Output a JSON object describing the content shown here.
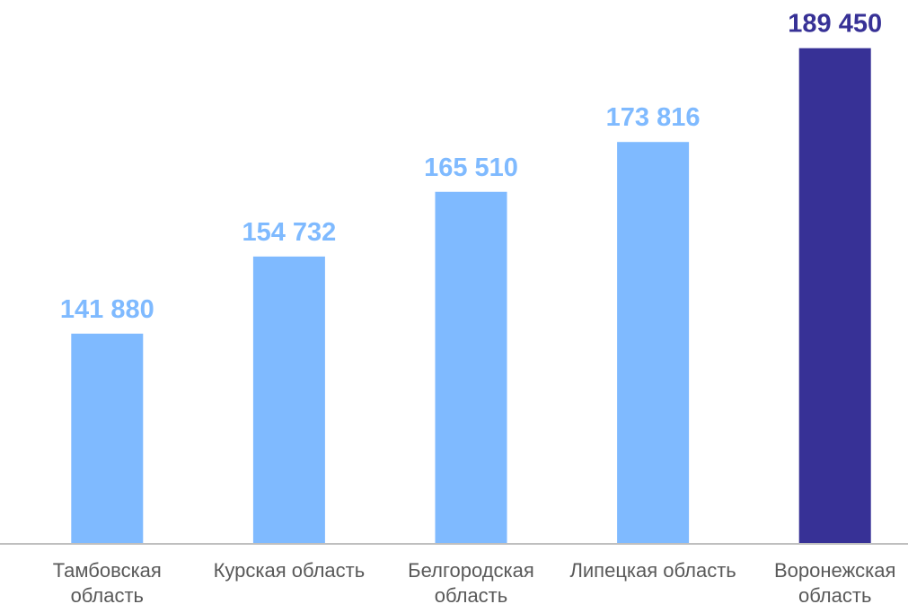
{
  "chart_data": {
    "type": "bar",
    "categories": [
      "Тамбовская область",
      "Курская область",
      "Белгородская область",
      "Липецкая область",
      "Воронежская область"
    ],
    "values": [
      141880,
      154732,
      165510,
      173816,
      189450
    ],
    "value_labels": [
      "141 880",
      "154 732",
      "165 510",
      "173 816",
      "189 450"
    ],
    "colors": [
      "#7fbaff",
      "#7fbaff",
      "#7fbaff",
      "#7fbaff",
      "#373196"
    ],
    "ylim": [
      107000,
      190000
    ]
  }
}
